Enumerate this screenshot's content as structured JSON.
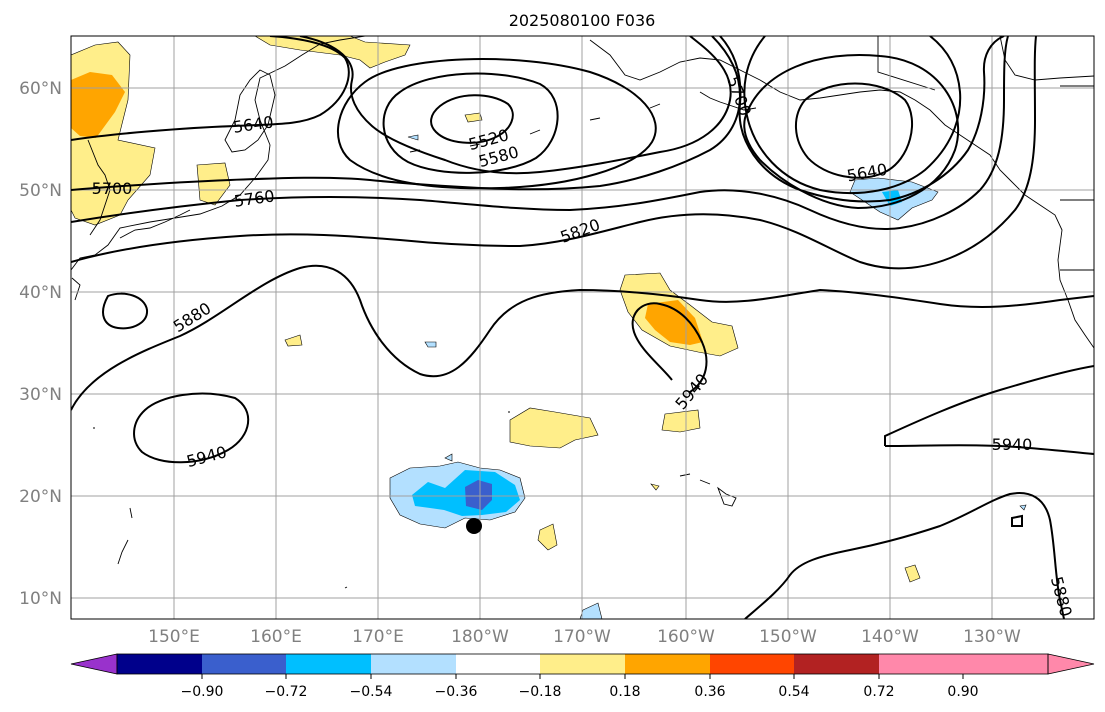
{
  "title": "2025080100 F036",
  "map": {
    "lat_labels": [
      "60°N",
      "50°N",
      "40°N",
      "30°N",
      "20°N",
      "10°N"
    ],
    "lon_labels": [
      "150°E",
      "160°E",
      "170°E",
      "180°W",
      "170°W",
      "160°W",
      "150°W",
      "140°W",
      "130°W"
    ],
    "contour_labels": [
      "5520",
      "5580",
      "5640",
      "5640",
      "5700",
      "5700",
      "5760",
      "5820",
      "5880",
      "5940",
      "5940",
      "5940",
      "5880"
    ],
    "marker": "black-dot",
    "colors": {
      "line": "#000000",
      "grid": "#a0a0a0",
      "pos_1": "#ffee8a",
      "pos_2": "#ffa500",
      "neg_1": "#b3e0ff",
      "neg_2": "#00bfff",
      "neg_3": "#3a5fcd"
    }
  },
  "colorbar": {
    "ticks": [
      "−0.90",
      "−0.72",
      "−0.54",
      "−0.36",
      "−0.18",
      "0.18",
      "0.36",
      "0.54",
      "0.72",
      "0.90"
    ],
    "colors": [
      "#9932cc",
      "#00008b",
      "#3a5fcd",
      "#00bfff",
      "#b3e0ff",
      "#ffffff",
      "#ffee8a",
      "#ffa500",
      "#ff4500",
      "#b22222",
      "#ff88aa",
      "#ff88aa"
    ],
    "extend": "both"
  }
}
